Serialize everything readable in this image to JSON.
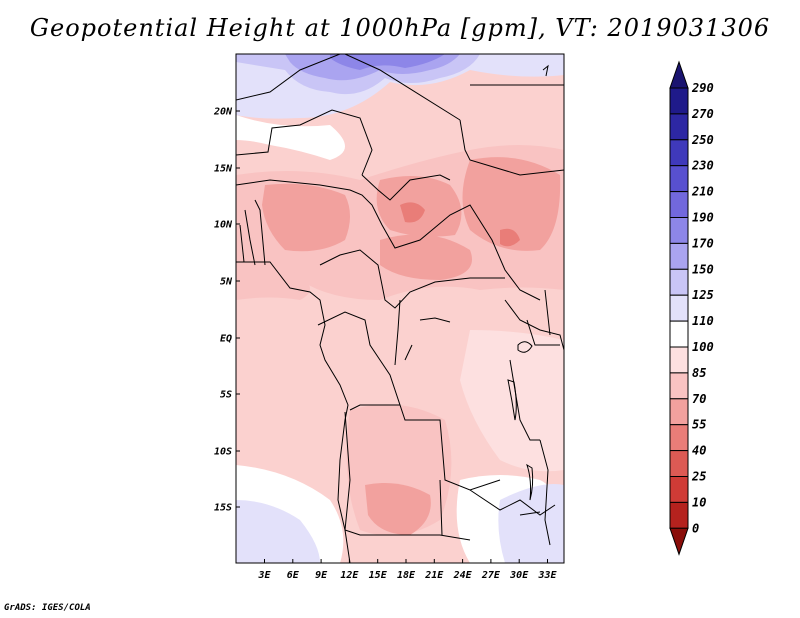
{
  "title": "Geopotential Height at 1000hPa [gpm], VT: 2019031306",
  "footer": "GrADS: IGES/COLA",
  "map": {
    "lat_labels": [
      "20N",
      "15N",
      "10N",
      "5N",
      "EQ",
      "5S",
      "10S",
      "15S"
    ],
    "lon_labels": [
      "3E",
      "6E",
      "9E",
      "12E",
      "15E",
      "18E",
      "21E",
      "24E",
      "27E",
      "30E",
      "33E"
    ]
  },
  "colorbar": {
    "labels": [
      "290",
      "270",
      "250",
      "230",
      "210",
      "190",
      "170",
      "150",
      "125",
      "110",
      "100",
      "85",
      "70",
      "55",
      "40",
      "25",
      "10",
      "0"
    ],
    "colors": [
      "#1f1a8a",
      "#2d27a3",
      "#3f39bb",
      "#5850cf",
      "#7268dd",
      "#8d86e8",
      "#aaa4f0",
      "#c9c5f6",
      "#e3e1fa",
      "#ffffff",
      "#fde0e0",
      "#f9c3c2",
      "#f2a19e",
      "#e97d78",
      "#dd5a54",
      "#cf3b36",
      "#b5221e",
      "#8f130f"
    ],
    "top_color": "#1a1470",
    "bottom_color": "#8a0e0a"
  }
}
